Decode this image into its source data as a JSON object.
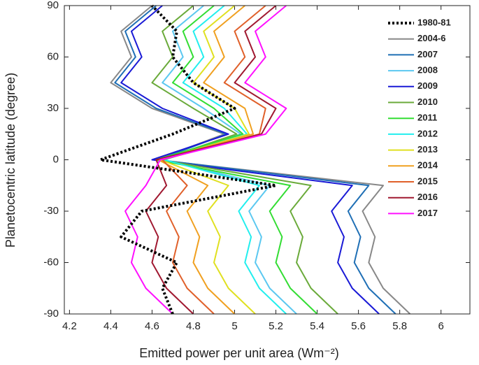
{
  "chart_data": {
    "type": "line",
    "xlabel": "Emitted power per unit area (Wm⁻²)",
    "ylabel": "Planetocentric latitude (degree)",
    "y": [
      -90,
      -75,
      -60,
      -45,
      -30,
      -15,
      0,
      15,
      30,
      45,
      60,
      75,
      90
    ],
    "xlim": [
      4.175,
      6.14
    ],
    "xticks": [
      4.2,
      4.4,
      4.6,
      4.8,
      5,
      5.2,
      5.4,
      5.6,
      5.8,
      6
    ],
    "ylim": [
      -90,
      90
    ],
    "yticks": [
      -90,
      -60,
      -30,
      0,
      30,
      60,
      90
    ],
    "legend": "northeast",
    "series": [
      {
        "name": "1980-81",
        "color": "#000000",
        "style": "dotted",
        "values": [
          4.7,
          4.65,
          4.72,
          4.45,
          4.55,
          5.2,
          4.35,
          4.7,
          5.0,
          4.8,
          4.7,
          4.72,
          4.6
        ]
      },
      {
        "name": "2004-6",
        "color": "#888888",
        "style": "solid",
        "values": [
          5.85,
          5.72,
          5.65,
          5.68,
          5.62,
          5.72,
          4.62,
          4.95,
          4.6,
          4.4,
          4.5,
          4.45,
          4.6
        ]
      },
      {
        "name": "2007",
        "color": "#1f6fb5",
        "style": "solid",
        "values": [
          5.78,
          5.65,
          5.58,
          5.61,
          5.55,
          5.65,
          4.63,
          4.96,
          4.62,
          4.42,
          4.52,
          4.47,
          4.62
        ]
      },
      {
        "name": "2008",
        "color": "#5bc8f0",
        "style": "solid",
        "values": [
          5.3,
          5.17,
          5.1,
          5.13,
          5.07,
          5.17,
          4.65,
          5.03,
          4.85,
          4.65,
          4.75,
          4.7,
          4.85
        ]
      },
      {
        "name": "2009",
        "color": "#1a1ad6",
        "style": "solid",
        "values": [
          5.7,
          5.57,
          5.5,
          5.53,
          5.47,
          5.57,
          4.6,
          4.97,
          4.65,
          4.45,
          4.55,
          4.5,
          4.65
        ]
      },
      {
        "name": "2010",
        "color": "#6aaa3a",
        "style": "solid",
        "values": [
          5.5,
          5.37,
          5.3,
          5.33,
          5.27,
          5.37,
          4.64,
          5.01,
          4.8,
          4.6,
          4.7,
          4.65,
          4.8
        ]
      },
      {
        "name": "2011",
        "color": "#33dd33",
        "style": "solid",
        "values": [
          5.4,
          5.27,
          5.2,
          5.23,
          5.17,
          5.27,
          4.62,
          5.04,
          4.9,
          4.7,
          4.8,
          4.75,
          4.9
        ]
      },
      {
        "name": "2012",
        "color": "#22eeee",
        "style": "solid",
        "values": [
          5.25,
          5.12,
          5.05,
          5.08,
          5.02,
          5.12,
          4.66,
          5.06,
          4.95,
          4.75,
          4.85,
          4.8,
          4.95
        ]
      },
      {
        "name": "2013",
        "color": "#e0e020",
        "style": "solid",
        "values": [
          5.1,
          4.97,
          4.9,
          4.93,
          4.87,
          4.97,
          4.64,
          5.07,
          5.0,
          4.8,
          4.9,
          4.85,
          5.0
        ]
      },
      {
        "name": "2014",
        "color": "#f0a020",
        "style": "solid",
        "values": [
          5.0,
          4.87,
          4.8,
          4.83,
          4.77,
          4.87,
          4.63,
          5.09,
          5.05,
          4.85,
          4.95,
          4.9,
          5.05
        ]
      },
      {
        "name": "2015",
        "color": "#e0602a",
        "style": "solid",
        "values": [
          4.9,
          4.77,
          4.7,
          4.73,
          4.67,
          4.77,
          4.65,
          5.12,
          5.15,
          4.95,
          5.05,
          5.0,
          5.15
        ]
      },
      {
        "name": "2016",
        "color": "#a01830",
        "style": "solid",
        "values": [
          4.8,
          4.67,
          4.6,
          4.63,
          4.57,
          4.67,
          4.62,
          5.13,
          5.2,
          5.0,
          5.1,
          5.05,
          5.2
        ]
      },
      {
        "name": "2017",
        "color": "#ff10ff",
        "style": "solid",
        "values": [
          4.7,
          4.57,
          4.5,
          4.53,
          4.47,
          4.57,
          4.64,
          5.15,
          5.25,
          5.05,
          5.15,
          5.1,
          5.25
        ]
      }
    ]
  }
}
